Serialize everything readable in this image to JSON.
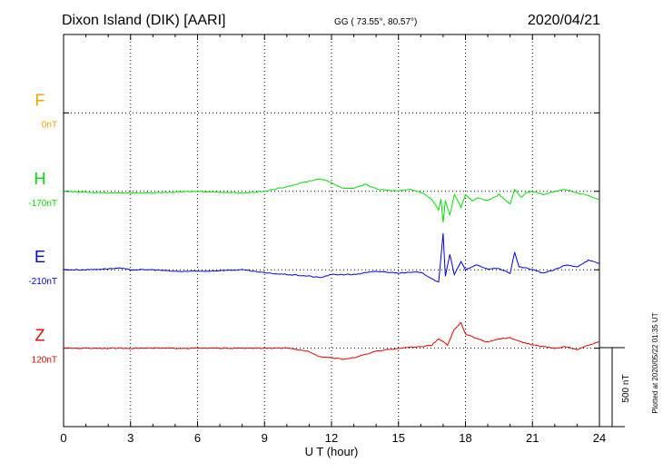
{
  "header": {
    "station": "Dixon Island (DIK)  [AARI]",
    "coords": "GG ( 73.55°,  80.57°)",
    "date": "2020/04/21"
  },
  "side_note": "Plotted at 2020/05/22 01:35 UT",
  "scale_bar_label": "500 nT",
  "chart_data": {
    "type": "line",
    "xlabel": "U T (hour)",
    "xlim": [
      0,
      24
    ],
    "x_ticks": [
      "0",
      "3",
      "6",
      "9",
      "12",
      "15",
      "18",
      "21",
      "24"
    ],
    "grid": true,
    "scale_bar_nT": 500,
    "components": [
      {
        "name": "F",
        "baseline": "0nT",
        "color": "#f0a000",
        "row": 1,
        "points": []
      },
      {
        "name": "H",
        "baseline": "-170nT",
        "color": "#00e000",
        "row": 2,
        "points": [
          [
            0,
            0
          ],
          [
            2,
            -10
          ],
          [
            4,
            -10
          ],
          [
            6,
            0
          ],
          [
            8,
            -10
          ],
          [
            9,
            0
          ],
          [
            10,
            30
          ],
          [
            11,
            65
          ],
          [
            11.5,
            80
          ],
          [
            12,
            55
          ],
          [
            12.5,
            20
          ],
          [
            13,
            20
          ],
          [
            13.5,
            45
          ],
          [
            14,
            15
          ],
          [
            15,
            0
          ],
          [
            15.5,
            15
          ],
          [
            16,
            -5
          ],
          [
            16.5,
            -50
          ],
          [
            16.8,
            -120
          ],
          [
            16.9,
            -50
          ],
          [
            17.0,
            -200
          ],
          [
            17.1,
            -60
          ],
          [
            17.3,
            -150
          ],
          [
            17.5,
            -20
          ],
          [
            17.8,
            -100
          ],
          [
            18,
            -20
          ],
          [
            18.3,
            -60
          ],
          [
            18.6,
            -40
          ],
          [
            19,
            -60
          ],
          [
            19.5,
            -20
          ],
          [
            20,
            -80
          ],
          [
            20.2,
            10
          ],
          [
            20.5,
            -40
          ],
          [
            20.7,
            -10
          ],
          [
            21,
            0
          ],
          [
            21.5,
            -20
          ],
          [
            22,
            0
          ],
          [
            22.3,
            10
          ],
          [
            22.5,
            10
          ],
          [
            23,
            -10
          ],
          [
            23.5,
            -25
          ],
          [
            24,
            -55
          ]
        ]
      },
      {
        "name": "E",
        "baseline": "-210nT",
        "color": "#0000e0",
        "row": 3,
        "points": [
          [
            0,
            0
          ],
          [
            1,
            0
          ],
          [
            2.5,
            10
          ],
          [
            3,
            0
          ],
          [
            4,
            0
          ],
          [
            5,
            -10
          ],
          [
            6,
            -10
          ],
          [
            8,
            0
          ],
          [
            9,
            -20
          ],
          [
            10,
            -30
          ],
          [
            11,
            -40
          ],
          [
            11.5,
            -50
          ],
          [
            12,
            -30
          ],
          [
            13,
            -30
          ],
          [
            14,
            -10
          ],
          [
            15,
            -20
          ],
          [
            16,
            -15
          ],
          [
            16.8,
            -80
          ],
          [
            17.0,
            230
          ],
          [
            17.1,
            -40
          ],
          [
            17.3,
            100
          ],
          [
            17.5,
            -30
          ],
          [
            17.8,
            50
          ],
          [
            18,
            0
          ],
          [
            18.5,
            30
          ],
          [
            19,
            5
          ],
          [
            19.5,
            10
          ],
          [
            20,
            -25
          ],
          [
            20.2,
            110
          ],
          [
            20.4,
            20
          ],
          [
            21,
            0
          ],
          [
            21.5,
            -20
          ],
          [
            22,
            0
          ],
          [
            22.5,
            30
          ],
          [
            23,
            20
          ],
          [
            23.5,
            60
          ],
          [
            24,
            40
          ]
        ]
      },
      {
        "name": "Z",
        "baseline": "120nT",
        "color": "#e00000",
        "row": 4,
        "points": [
          [
            0,
            0
          ],
          [
            2,
            0
          ],
          [
            4,
            0
          ],
          [
            6,
            0
          ],
          [
            8,
            0
          ],
          [
            10,
            0
          ],
          [
            11,
            -20
          ],
          [
            11.5,
            -55
          ],
          [
            12,
            -60
          ],
          [
            12.5,
            -70
          ],
          [
            13,
            -60
          ],
          [
            13.5,
            -40
          ],
          [
            14,
            -20
          ],
          [
            15,
            0
          ],
          [
            16,
            10
          ],
          [
            16.5,
            20
          ],
          [
            16.8,
            60
          ],
          [
            17.2,
            20
          ],
          [
            17.5,
            120
          ],
          [
            17.8,
            160
          ],
          [
            18,
            90
          ],
          [
            18.5,
            60
          ],
          [
            19,
            40
          ],
          [
            19.5,
            60
          ],
          [
            20,
            65
          ],
          [
            20.5,
            40
          ],
          [
            21,
            20
          ],
          [
            21.5,
            10
          ],
          [
            22,
            0
          ],
          [
            22.5,
            10
          ],
          [
            23,
            -10
          ],
          [
            23.5,
            20
          ],
          [
            24,
            40
          ]
        ]
      }
    ]
  }
}
